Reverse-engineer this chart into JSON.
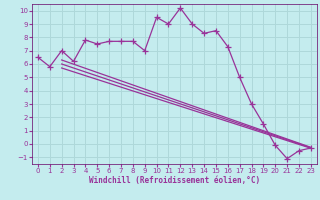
{
  "xlabel": "Windchill (Refroidissement éolien,°C)",
  "background_color": "#c4ecee",
  "grid_color": "#aed8da",
  "line_color": "#993399",
  "spine_color": "#660066",
  "xlim": [
    -0.5,
    23.5
  ],
  "ylim": [
    -1.5,
    10.5
  ],
  "xticks": [
    0,
    1,
    2,
    3,
    4,
    5,
    6,
    7,
    8,
    9,
    10,
    11,
    12,
    13,
    14,
    15,
    16,
    17,
    18,
    19,
    20,
    21,
    22,
    23
  ],
  "yticks": [
    -1,
    0,
    1,
    2,
    3,
    4,
    5,
    6,
    7,
    8,
    9,
    10
  ],
  "line1_x": [
    0,
    1,
    2,
    3,
    4,
    5,
    6,
    7,
    8,
    9,
    10,
    11,
    12,
    13,
    14,
    15,
    16,
    17,
    18,
    19,
    20,
    21,
    22,
    23
  ],
  "line1_y": [
    6.5,
    5.8,
    7.0,
    6.2,
    7.8,
    7.5,
    7.7,
    7.7,
    7.7,
    7.0,
    9.5,
    9.0,
    10.2,
    9.0,
    8.3,
    8.5,
    7.3,
    5.0,
    3.0,
    1.5,
    -0.1,
    -1.1,
    -0.5,
    -0.3
  ],
  "line2_x": [
    2,
    23
  ],
  "line2_y": [
    6.3,
    -0.25
  ],
  "line3_x": [
    2,
    23
  ],
  "line3_y": [
    6.0,
    -0.28
  ],
  "line4_x": [
    2,
    23
  ],
  "line4_y": [
    5.7,
    -0.32
  ]
}
